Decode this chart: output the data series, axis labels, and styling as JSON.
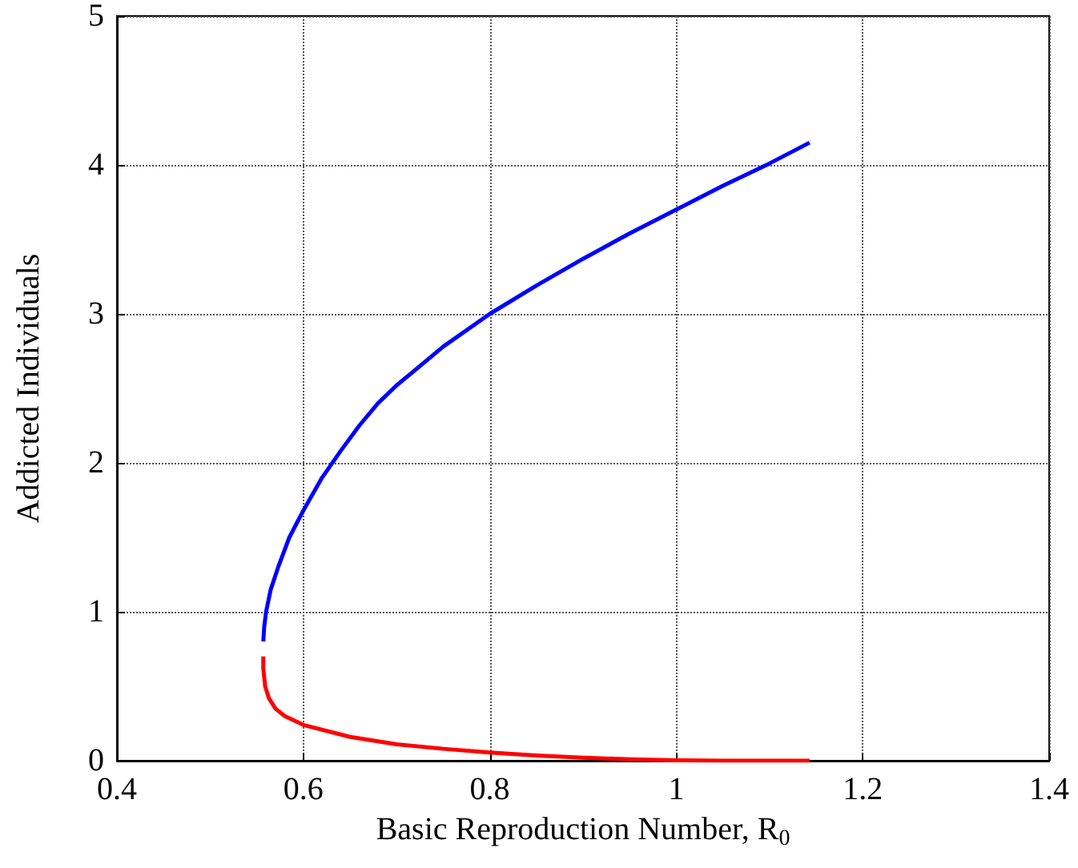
{
  "chart_data": {
    "type": "line",
    "xlabel": "Basic Reproduction Number, R$_{0}$",
    "ylabel": "Addicted Individuals",
    "xlim": [
      0.4,
      1.4
    ],
    "xticks": [
      0.4,
      0.6,
      0.8,
      1,
      1.2,
      1.4
    ],
    "ylim": [
      0,
      5
    ],
    "yticks": [
      0,
      1,
      2,
      3,
      4,
      5
    ],
    "grid": true,
    "line_style": "solid",
    "marker": "none",
    "series": [
      {
        "color": "#0000ff",
        "x": [
          0.557,
          0.558,
          0.56,
          0.565,
          0.573,
          0.585,
          0.6,
          0.62,
          0.64,
          0.66,
          0.68,
          0.7,
          0.75,
          0.8,
          0.85,
          0.9,
          0.95,
          1.0,
          1.05,
          1.1,
          1.143
        ],
        "values": [
          0.8,
          0.9,
          1.0,
          1.15,
          1.3,
          1.5,
          1.68,
          1.9,
          2.08,
          2.25,
          2.4,
          2.52,
          2.78,
          3.0,
          3.19,
          3.37,
          3.54,
          3.7,
          3.86,
          4.01,
          4.15
        ]
      },
      {
        "color": "#ff0000",
        "x": [
          0.557,
          0.557,
          0.559,
          0.563,
          0.57,
          0.58,
          0.6,
          0.65,
          0.7,
          0.75,
          0.8,
          0.85,
          0.9,
          0.95,
          1.0,
          1.05,
          1.1,
          1.143
        ],
        "values": [
          0.7,
          0.62,
          0.5,
          0.42,
          0.35,
          0.3,
          0.24,
          0.16,
          0.11,
          0.08,
          0.055,
          0.035,
          0.02,
          0.01,
          0.003,
          0,
          0,
          0
        ]
      }
    ]
  }
}
